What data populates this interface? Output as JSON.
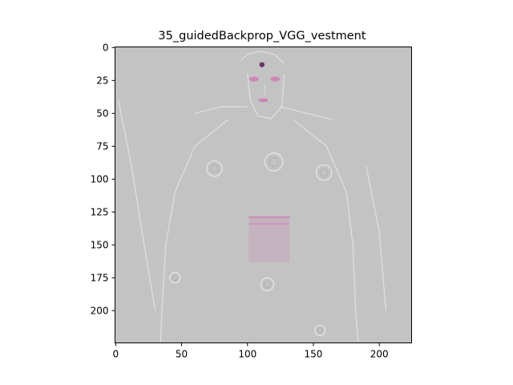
{
  "figure": {
    "title": "35_guidedBackprop_VGG_vestment",
    "image_description_icon": "saliency-map-icon"
  },
  "axes": {
    "x": {
      "range": [
        0,
        224
      ],
      "ticks": [
        0,
        50,
        100,
        150,
        200
      ],
      "tick_labels": [
        "0",
        "50",
        "100",
        "150",
        "200"
      ]
    },
    "y": {
      "range": [
        0,
        224
      ],
      "ticks": [
        0,
        25,
        50,
        75,
        100,
        125,
        150,
        175,
        200
      ],
      "tick_labels": [
        "0",
        "25",
        "50",
        "75",
        "100",
        "125",
        "150",
        "175",
        "200"
      ],
      "inverted": true
    }
  },
  "colors": {
    "image_background": "#c3c3c3",
    "highlight_pink": "#d26fb0",
    "highlight_dark": "#6a2f6a",
    "edge_light": "#e6e6e6"
  }
}
